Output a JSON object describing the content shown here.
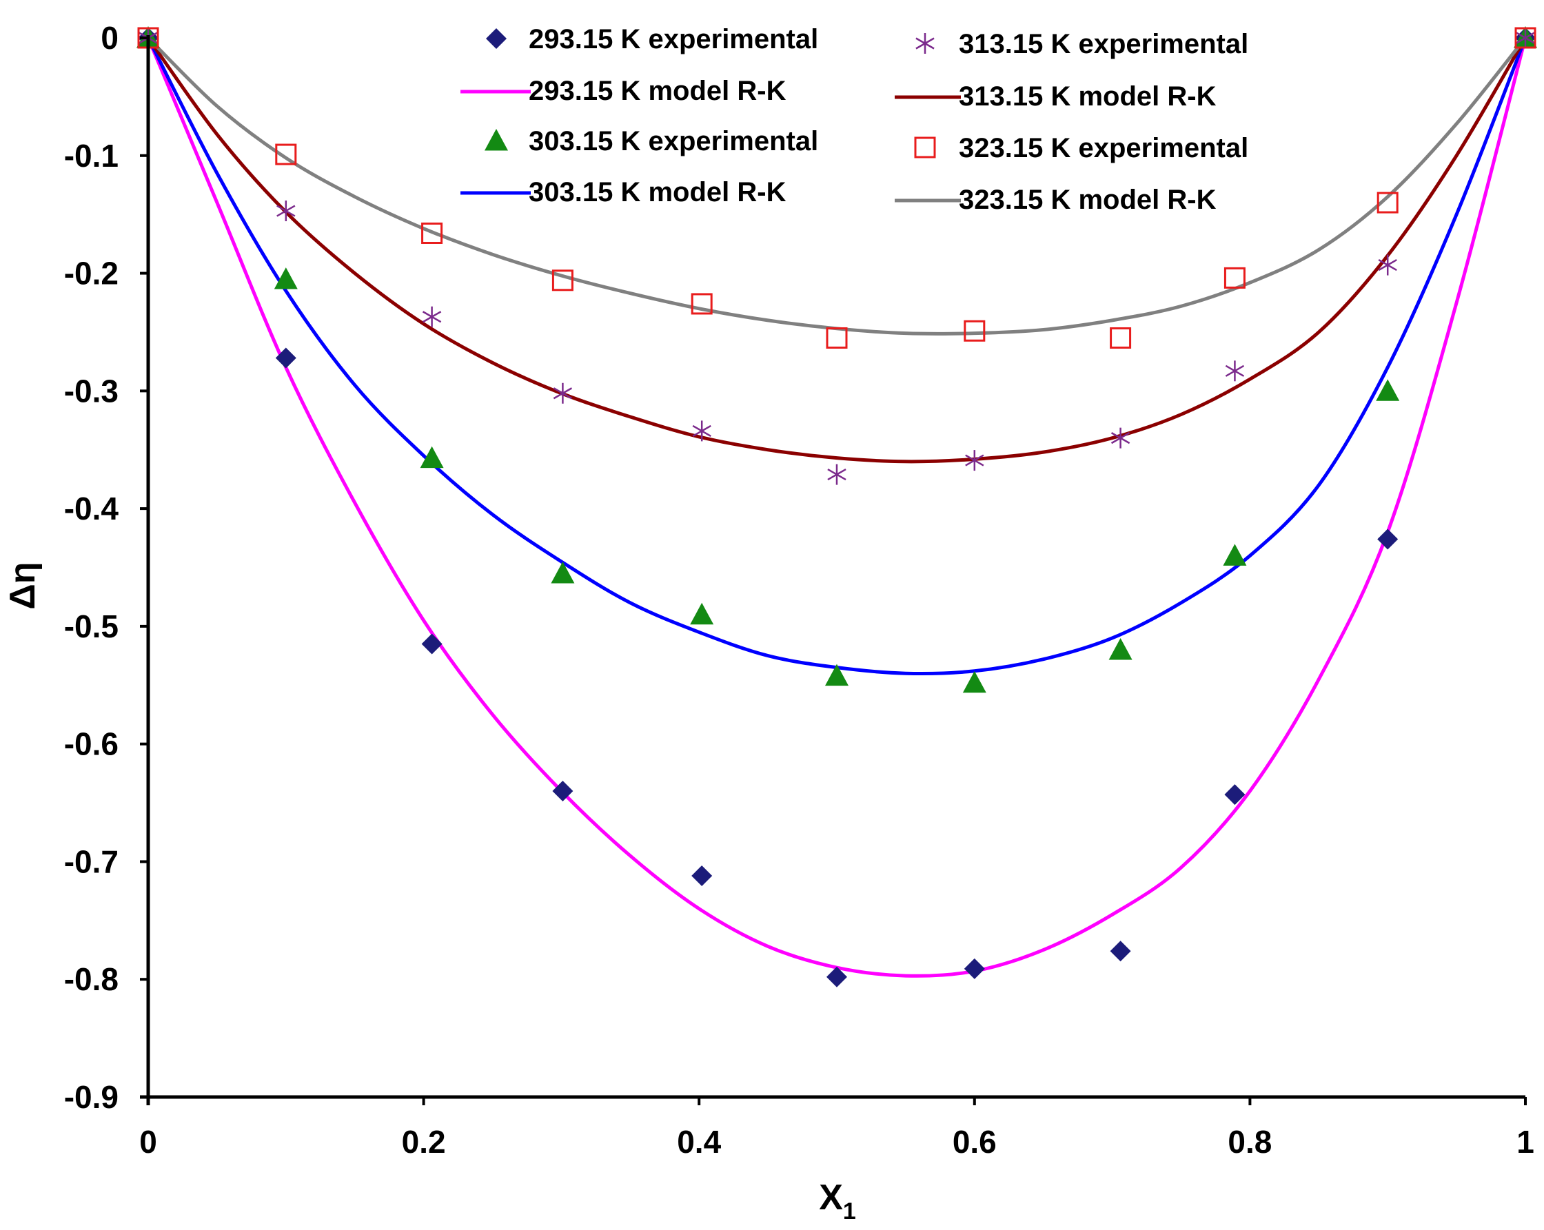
{
  "chart_data": {
    "type": "scatter",
    "xlabel": "X",
    "xlabel_subscript": "1",
    "ylabel": "Δη",
    "xlim": [
      0,
      1
    ],
    "ylim": [
      -0.9,
      0
    ],
    "xticks": [
      0,
      0.2,
      0.4,
      0.6,
      0.8,
      1
    ],
    "xtick_labels": [
      "0",
      "0.2",
      "0.4",
      "0.6",
      "0.8",
      "1"
    ],
    "yticks": [
      0,
      -0.1,
      -0.2,
      -0.3,
      -0.4,
      -0.5,
      -0.6,
      -0.7,
      -0.8,
      -0.9
    ],
    "ytick_labels": [
      "0",
      "-0.1",
      "-0.2",
      "-0.3",
      "-0.4",
      "-0.5",
      "-0.6",
      "-0.7",
      "-0.8",
      "-0.9"
    ],
    "grid": false,
    "legend_position": "top-center",
    "series": [
      {
        "name": "293.15 K experimental",
        "kind": "scatter",
        "marker": "diamond",
        "color": "#1c1c7a",
        "x": [
          0,
          0.1,
          0.206,
          0.301,
          0.402,
          0.5,
          0.6,
          0.706,
          0.789,
          0.9,
          1
        ],
        "y": [
          0,
          -0.272,
          -0.515,
          -0.64,
          -0.712,
          -0.798,
          -0.791,
          -0.776,
          -0.643,
          -0.426,
          0
        ]
      },
      {
        "name": "293.15 K model R-K",
        "kind": "line",
        "color": "#ff00ff",
        "x": [
          0,
          0.05,
          0.1,
          0.15,
          0.2,
          0.25,
          0.3,
          0.35,
          0.4,
          0.45,
          0.5,
          0.55,
          0.6,
          0.65,
          0.7,
          0.75,
          0.8,
          0.85,
          0.9,
          0.95,
          1
        ],
        "y": [
          0,
          -0.14,
          -0.28,
          -0.395,
          -0.495,
          -0.575,
          -0.64,
          -0.695,
          -0.74,
          -0.772,
          -0.79,
          -0.797,
          -0.793,
          -0.775,
          -0.745,
          -0.705,
          -0.64,
          -0.545,
          -0.42,
          -0.225,
          0
        ]
      },
      {
        "name": "303.15 K experimental",
        "kind": "scatter",
        "marker": "triangle",
        "color": "#138a13",
        "x": [
          0,
          0.1,
          0.206,
          0.301,
          0.402,
          0.5,
          0.6,
          0.706,
          0.789,
          0.9,
          1
        ],
        "y": [
          0,
          -0.205,
          -0.357,
          -0.455,
          -0.49,
          -0.542,
          -0.548,
          -0.52,
          -0.44,
          -0.3,
          0
        ]
      },
      {
        "name": "303.15 K model R-K",
        "kind": "line",
        "color": "#0000ff",
        "x": [
          0,
          0.05,
          0.1,
          0.15,
          0.2,
          0.25,
          0.3,
          0.35,
          0.4,
          0.45,
          0.5,
          0.55,
          0.6,
          0.65,
          0.7,
          0.75,
          0.8,
          0.85,
          0.9,
          0.95,
          1
        ],
        "y": [
          0,
          -0.115,
          -0.215,
          -0.295,
          -0.355,
          -0.405,
          -0.445,
          -0.48,
          -0.505,
          -0.525,
          -0.535,
          -0.54,
          -0.538,
          -0.528,
          -0.51,
          -0.48,
          -0.44,
          -0.38,
          -0.28,
          -0.15,
          0
        ]
      },
      {
        "name": "313.15 K experimental",
        "kind": "scatter",
        "marker": "asterisk",
        "color": "#7b2a8c",
        "x": [
          0,
          0.1,
          0.206,
          0.301,
          0.402,
          0.5,
          0.6,
          0.706,
          0.789,
          0.9,
          1
        ],
        "y": [
          0,
          -0.147,
          -0.237,
          -0.302,
          -0.334,
          -0.371,
          -0.359,
          -0.34,
          -0.283,
          -0.193,
          0
        ]
      },
      {
        "name": "313.15 K model R-K",
        "kind": "line",
        "color": "#8b0000",
        "x": [
          0,
          0.05,
          0.1,
          0.15,
          0.2,
          0.25,
          0.3,
          0.35,
          0.4,
          0.45,
          0.5,
          0.55,
          0.6,
          0.65,
          0.7,
          0.75,
          0.8,
          0.85,
          0.9,
          0.95,
          1
        ],
        "y": [
          0,
          -0.082,
          -0.148,
          -0.2,
          -0.243,
          -0.276,
          -0.302,
          -0.322,
          -0.339,
          -0.35,
          -0.357,
          -0.36,
          -0.358,
          -0.352,
          -0.34,
          -0.32,
          -0.29,
          -0.25,
          -0.185,
          -0.1,
          0
        ]
      },
      {
        "name": "323.15 K experimental",
        "kind": "scatter",
        "marker": "square",
        "color": "#e81c1c",
        "x": [
          0,
          0.1,
          0.206,
          0.301,
          0.402,
          0.5,
          0.6,
          0.706,
          0.789,
          0.9,
          1
        ],
        "y": [
          0,
          -0.099,
          -0.166,
          -0.206,
          -0.226,
          -0.255,
          -0.249,
          -0.255,
          -0.204,
          -0.14,
          0
        ]
      },
      {
        "name": "323.15 K model R-K",
        "kind": "line",
        "color": "#808080",
        "x": [
          0,
          0.05,
          0.1,
          0.15,
          0.2,
          0.25,
          0.3,
          0.35,
          0.4,
          0.45,
          0.5,
          0.55,
          0.6,
          0.65,
          0.7,
          0.75,
          0.8,
          0.85,
          0.9,
          0.95,
          1
        ],
        "y": [
          0,
          -0.058,
          -0.102,
          -0.135,
          -0.162,
          -0.184,
          -0.202,
          -0.217,
          -0.23,
          -0.24,
          -0.247,
          -0.251,
          -0.251,
          -0.248,
          -0.24,
          -0.228,
          -0.208,
          -0.18,
          -0.135,
          -0.073,
          0
        ]
      }
    ]
  }
}
